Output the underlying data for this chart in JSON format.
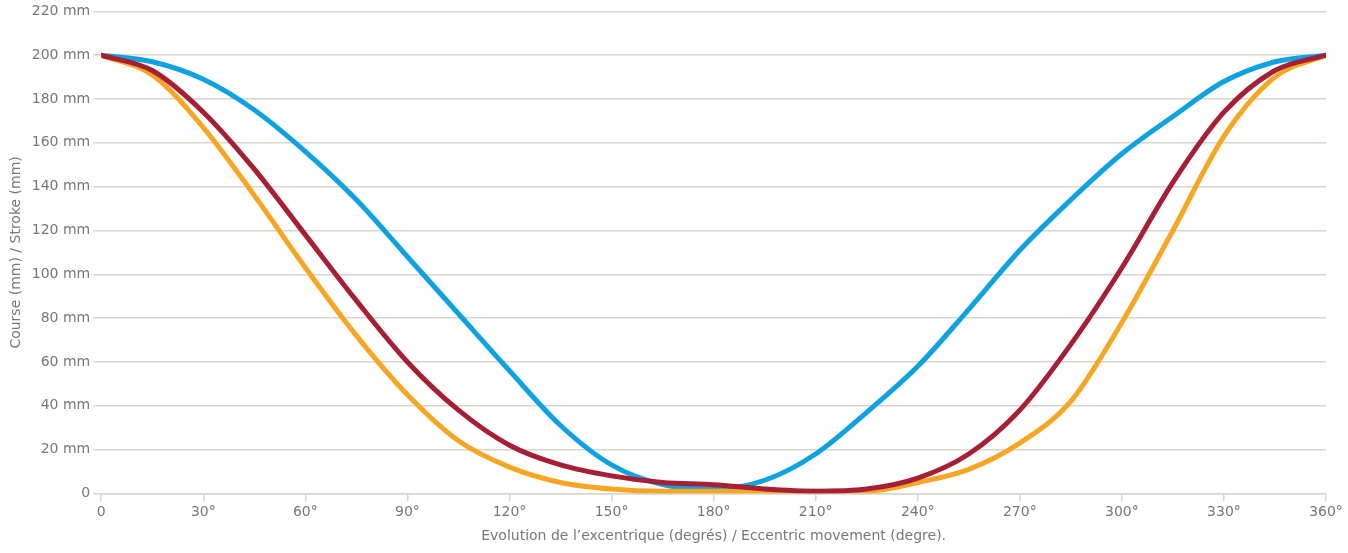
{
  "chart_data": {
    "type": "line",
    "xlabel": "Evolution de l’excentrique (degrés) / Eccentric movement (degre).",
    "ylabel": "Course (mm) / Stroke (mm)",
    "x": [
      0,
      15,
      30,
      45,
      60,
      75,
      90,
      105,
      120,
      135,
      150,
      165,
      180,
      195,
      210,
      225,
      240,
      255,
      270,
      285,
      300,
      315,
      330,
      345,
      360
    ],
    "series": [
      {
        "color": "#0ea2e0",
        "values": [
          200,
          197,
          189,
          175,
          156,
          134,
          108,
          82,
          56,
          31,
          13,
          4,
          2,
          6,
          18,
          37,
          58,
          84,
          111,
          134,
          155,
          172,
          188,
          197,
          200
        ]
      },
      {
        "color": "#f6a623",
        "values": [
          200,
          191,
          167,
          136,
          103,
          72,
          45,
          24,
          12,
          5,
          2,
          1,
          1,
          1,
          1,
          1,
          5,
          11,
          23,
          42,
          78,
          120,
          163,
          190,
          200
        ]
      },
      {
        "color": "#a61f35",
        "values": [
          200,
          193,
          174,
          148,
          118,
          88,
          60,
          38,
          22,
          13,
          8,
          5,
          4,
          2,
          1,
          2,
          7,
          18,
          38,
          68,
          103,
          142,
          174,
          193,
          200
        ]
      }
    ],
    "xlim": [
      0,
      360
    ],
    "ylim": [
      0,
      220
    ],
    "xticks": [
      0,
      {
        "value": 30,
        "label": "30°"
      },
      {
        "value": 60,
        "label": "60°"
      },
      {
        "value": 90,
        "label": "90°"
      },
      {
        "value": 120,
        "label": "120°"
      },
      {
        "value": 150,
        "label": "150°"
      },
      {
        "value": 180,
        "label": "180°"
      },
      {
        "value": 210,
        "label": "210°"
      },
      {
        "value": 240,
        "label": "240°"
      },
      {
        "value": 270,
        "label": "270°"
      },
      {
        "value": 300,
        "label": "300°"
      },
      {
        "value": 330,
        "label": "330°"
      },
      {
        "value": 360,
        "label": "360°"
      }
    ],
    "yticks": [
      0,
      {
        "value": 20,
        "label": "20 mm"
      },
      {
        "value": 40,
        "label": "40 mm"
      },
      {
        "value": 60,
        "label": "60 mm"
      },
      {
        "value": 80,
        "label": "80 mm"
      },
      {
        "value": 100,
        "label": "100 mm"
      },
      {
        "value": 120,
        "label": "120 mm"
      },
      {
        "value": 140,
        "label": "140 mm"
      },
      {
        "value": 160,
        "label": "160 mm"
      },
      {
        "value": 180,
        "label": "180 mm"
      },
      {
        "value": 200,
        "label": "200 mm"
      },
      {
        "value": 220,
        "label": "220 mm"
      }
    ],
    "grid": "y",
    "legend": false,
    "marker": "none",
    "line_style": "solid"
  }
}
